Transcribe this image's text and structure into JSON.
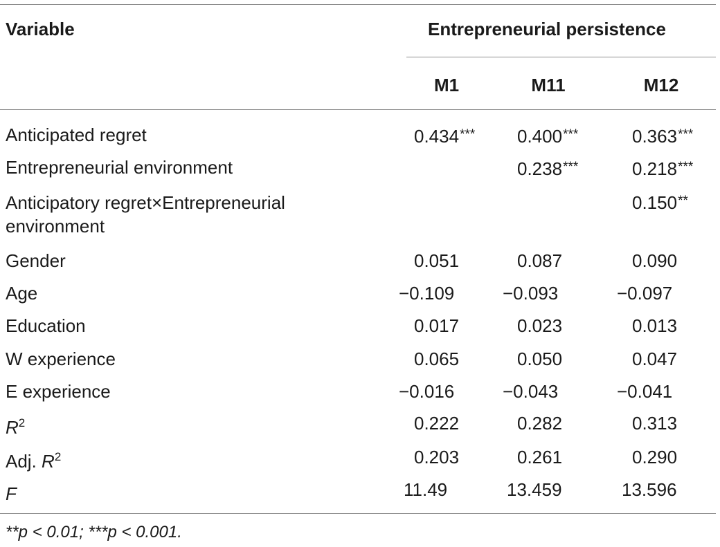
{
  "table": {
    "header": {
      "variable_label": "Variable",
      "group_label": "Entrepreneurial persistence",
      "columns": [
        "M1",
        "M11",
        "M12"
      ]
    },
    "rows": [
      {
        "label": "Anticipated regret",
        "values": [
          "0.434",
          "0.400",
          "0.363"
        ],
        "stars": [
          "***",
          "***",
          "***"
        ]
      },
      {
        "label": "Entrepreneurial environment",
        "values": [
          "",
          "0.238",
          "0.218"
        ],
        "stars": [
          "",
          "***",
          "***"
        ]
      },
      {
        "label": "Anticipatory regret×Entrepreneurial environment",
        "values": [
          "",
          "",
          "0.150"
        ],
        "stars": [
          "",
          "",
          "**"
        ]
      },
      {
        "label": "Gender",
        "values": [
          "0.051",
          "0.087",
          "0.090"
        ],
        "stars": [
          "",
          "",
          ""
        ]
      },
      {
        "label": "Age",
        "values": [
          "−0.109",
          "−0.093",
          "−0.097"
        ],
        "stars": [
          "",
          "",
          ""
        ]
      },
      {
        "label": "Education",
        "values": [
          "0.017",
          "0.023",
          "0.013"
        ],
        "stars": [
          "",
          "",
          ""
        ]
      },
      {
        "label": "W experience",
        "values": [
          "0.065",
          "0.050",
          "0.047"
        ],
        "stars": [
          "",
          "",
          ""
        ]
      },
      {
        "label": "E experience",
        "values": [
          "−0.016",
          "−0.043",
          "−0.041"
        ],
        "stars": [
          "",
          "",
          ""
        ]
      },
      {
        "label_prefix": "",
        "label_symbol": "R",
        "label_sup": "2",
        "values": [
          "0.222",
          "0.282",
          "0.313"
        ],
        "stars": [
          "",
          "",
          ""
        ]
      },
      {
        "label_prefix": "Adj. ",
        "label_symbol": "R",
        "label_sup": "2",
        "values": [
          "0.203",
          "0.261",
          "0.290"
        ],
        "stars": [
          "",
          "",
          ""
        ]
      },
      {
        "label_prefix": "",
        "label_symbol": "F",
        "label_sup": "",
        "values": [
          "11.49",
          "13.459",
          "13.596"
        ],
        "stars": [
          "",
          "",
          ""
        ]
      }
    ],
    "note": "**p < 0.01; ***p < 0.001."
  }
}
